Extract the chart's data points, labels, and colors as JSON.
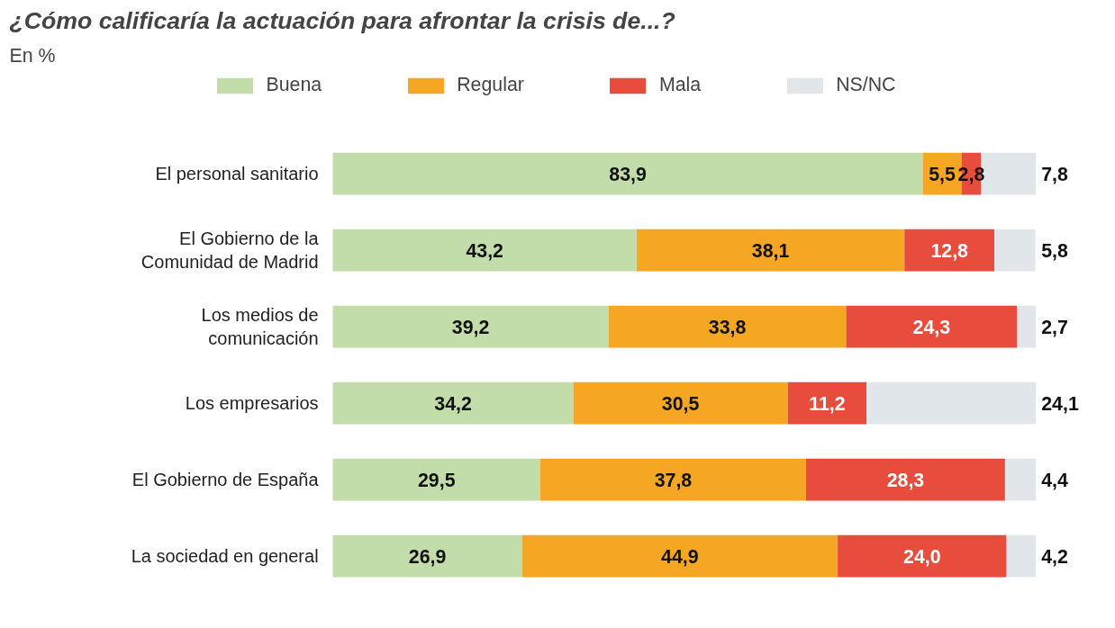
{
  "chart_data": {
    "type": "bar",
    "orientation": "horizontal",
    "stacked": true,
    "title": "¿Cómo calificaría la actuación para afrontar la crisis de...?",
    "subtitle": "En %",
    "categories": [
      "El personal sanitario",
      "El Gobierno de la Comunidad de Madrid",
      "Los medios de comunicación",
      "Los empresarios",
      "El Gobierno de España",
      "La sociedad en general"
    ],
    "series": [
      {
        "name": "Buena",
        "color": "#c2dcaa",
        "values": [
          83.9,
          43.2,
          39.2,
          34.2,
          29.5,
          26.9
        ],
        "value_labels": [
          "83,9",
          "43,2",
          "39,2",
          "34,2",
          "29,5",
          "26,9"
        ]
      },
      {
        "name": "Regular",
        "color": "#f5a623",
        "values": [
          5.5,
          38.1,
          33.8,
          30.5,
          37.8,
          44.9
        ],
        "value_labels": [
          "5,5",
          "38,1",
          "33,8",
          "30,5",
          "37,8",
          "44,9"
        ]
      },
      {
        "name": "Mala",
        "color": "#e84c3d",
        "values": [
          2.8,
          12.8,
          24.3,
          11.2,
          28.3,
          24.0
        ],
        "value_labels": [
          "2,8",
          "12,8",
          "24,3",
          "11,2",
          "28,3",
          "24,0"
        ]
      },
      {
        "name": "NS/NC",
        "color": "#e1e6ea",
        "values": [
          7.8,
          5.8,
          2.7,
          24.1,
          4.4,
          4.2
        ],
        "value_labels": [
          "7,8",
          "5,8",
          "2,7",
          "24,1",
          "4,4",
          "4,2"
        ]
      }
    ],
    "tick_labels": "y",
    "grid": false,
    "legend": "top"
  }
}
